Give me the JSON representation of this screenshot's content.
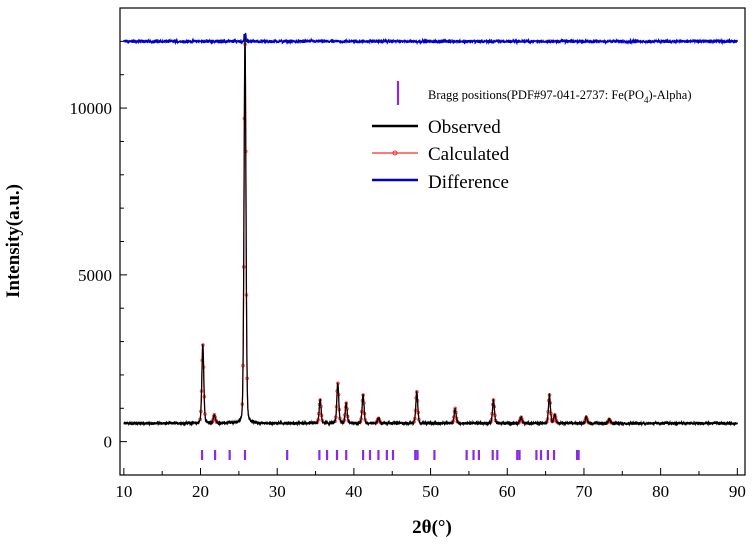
{
  "chart_data": {
    "type": "line",
    "title": "",
    "xlabel": "2θ(°)",
    "ylabel": "Intensity(a.u.)",
    "xlim": [
      9.5,
      91
    ],
    "ylim": [
      -1000,
      13000
    ],
    "x_ticks": [
      10,
      20,
      30,
      40,
      50,
      60,
      70,
      80,
      90
    ],
    "x_tick_labels": [
      "10",
      "20",
      "30",
      "40",
      "50",
      "60",
      "70",
      "80",
      "90"
    ],
    "y_ticks": [
      0,
      5000,
      10000
    ],
    "y_tick_labels": [
      "0",
      "5000",
      "10000"
    ],
    "background_level": 550,
    "peaks": [
      {
        "x": 20.3,
        "height": 2350
      },
      {
        "x": 21.8,
        "height": 250
      },
      {
        "x": 25.8,
        "height": 11400
      },
      {
        "x": 35.6,
        "height": 700
      },
      {
        "x": 37.9,
        "height": 1200
      },
      {
        "x": 39.0,
        "height": 600
      },
      {
        "x": 41.2,
        "height": 850
      },
      {
        "x": 43.2,
        "height": 150
      },
      {
        "x": 48.2,
        "height": 950
      },
      {
        "x": 53.2,
        "height": 450
      },
      {
        "x": 58.2,
        "height": 700
      },
      {
        "x": 61.8,
        "height": 180
      },
      {
        "x": 65.5,
        "height": 850
      },
      {
        "x": 66.2,
        "height": 250
      },
      {
        "x": 70.3,
        "height": 180
      },
      {
        "x": 73.3,
        "height": 120
      }
    ],
    "difference_offset": 12000,
    "bragg": {
      "label": "Bragg positions(PDF#97-041-2737: Fe(PO",
      "label_sub": "4",
      "label_end": ")-Alpha)",
      "top": -250,
      "bottom": -550,
      "positions": [
        20.2,
        21.9,
        23.8,
        25.8,
        31.3,
        35.5,
        36.5,
        37.8,
        39.0,
        41.2,
        42.1,
        43.2,
        44.3,
        45.1,
        48.0,
        48.3,
        50.5,
        54.7,
        55.6,
        56.3,
        58.1,
        58.7,
        61.3,
        61.6,
        63.8,
        64.4,
        65.3,
        66.1,
        69.1,
        69.3
      ]
    },
    "series": [
      {
        "name": "Observed",
        "color": "#000000"
      },
      {
        "name": "Calculated",
        "color": "#ff2a2a"
      },
      {
        "name": "Difference",
        "color": "#0000cc"
      }
    ],
    "bragg_color": "#8a2be2",
    "legend_position": "top-right"
  }
}
